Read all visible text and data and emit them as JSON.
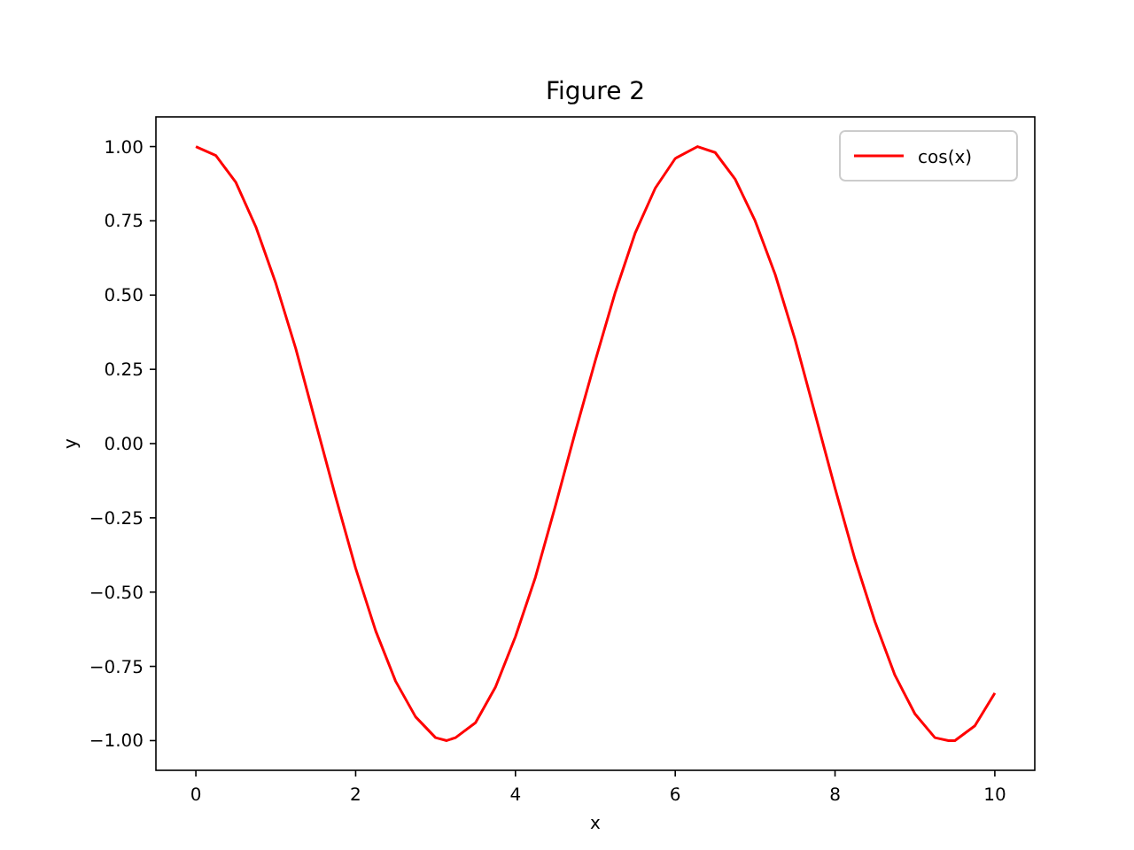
{
  "chart_data": {
    "type": "line",
    "title": "Figure 2",
    "xlabel": "x",
    "ylabel": "y",
    "x": [
      0,
      0.25,
      0.5,
      0.75,
      1,
      1.25,
      1.5,
      1.75,
      2,
      2.25,
      2.5,
      2.75,
      3,
      3.14,
      3.25,
      3.5,
      3.75,
      4,
      4.25,
      4.5,
      4.75,
      5,
      5.25,
      5.5,
      5.75,
      6,
      6.28,
      6.5,
      6.75,
      7,
      7.25,
      7.5,
      7.75,
      8,
      8.25,
      8.5,
      8.75,
      9,
      9.25,
      9.42,
      9.5,
      9.75,
      10
    ],
    "series": [
      {
        "name": "cos(x)",
        "color": "#ff0000",
        "values": [
          1.0,
          0.97,
          0.88,
          0.73,
          0.54,
          0.32,
          0.07,
          -0.18,
          -0.42,
          -0.63,
          -0.8,
          -0.92,
          -0.99,
          -1.0,
          -0.99,
          -0.94,
          -0.82,
          -0.65,
          -0.45,
          -0.21,
          0.04,
          0.28,
          0.51,
          0.71,
          0.86,
          0.96,
          1.0,
          0.98,
          0.89,
          0.75,
          0.57,
          0.35,
          0.1,
          -0.15,
          -0.39,
          -0.6,
          -0.78,
          -0.91,
          -0.99,
          -1.0,
          -1.0,
          -0.95,
          -0.84
        ]
      }
    ],
    "xlim": [
      -0.5,
      10.5
    ],
    "ylim": [
      -1.1,
      1.1
    ],
    "xticks": [
      0,
      2,
      4,
      6,
      8,
      10
    ],
    "yticks": [
      {
        "value": -1,
        "label": "−1.00"
      },
      {
        "value": -0.75,
        "label": "−0.75"
      },
      {
        "value": -0.5,
        "label": "−0.50"
      },
      {
        "value": -0.25,
        "label": "−0.25"
      },
      {
        "value": 0,
        "label": "0.00"
      },
      {
        "value": 0.25,
        "label": "0.25"
      },
      {
        "value": 0.5,
        "label": "0.50"
      },
      {
        "value": 0.75,
        "label": "0.75"
      },
      {
        "value": 1,
        "label": "1.00"
      }
    ],
    "legend": "top right",
    "grid": false,
    "line_style": "solid",
    "marker": "none"
  }
}
